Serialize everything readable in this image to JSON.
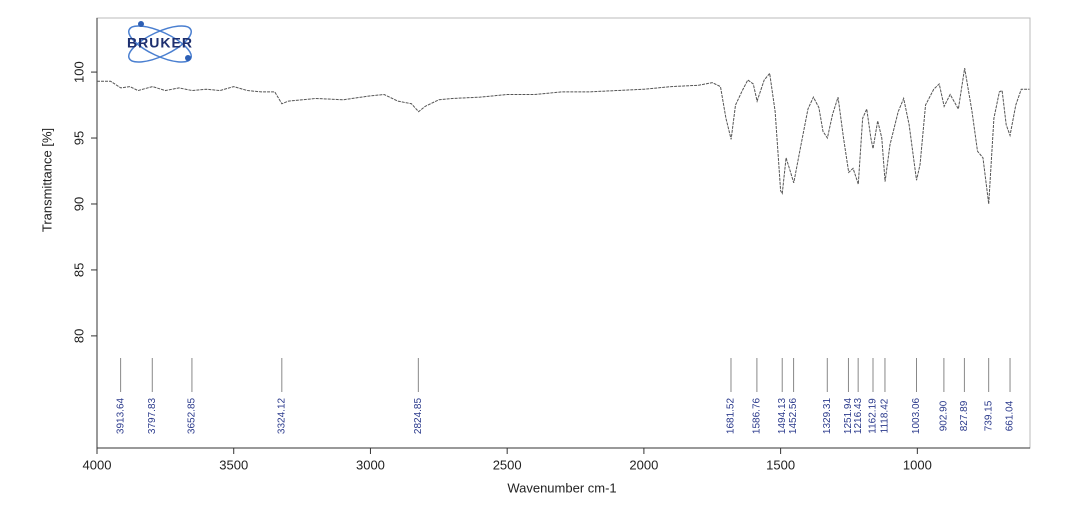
{
  "chart_data": {
    "type": "line",
    "logo": "BRUKER",
    "xlabel": "Wavenumber cm-1",
    "ylabel": "Transmittance [%]",
    "color": "#555555",
    "xlim": [
      4000,
      588
    ],
    "ylim": [
      71.5,
      104.1
    ],
    "xticks": [
      4000,
      3500,
      3000,
      2500,
      2000,
      1500,
      1000
    ],
    "yticks": [
      80,
      85,
      90,
      95,
      100
    ],
    "x": [
      4000,
      3950,
      3913,
      3880,
      3850,
      3797,
      3750,
      3700,
      3652,
      3600,
      3550,
      3500,
      3450,
      3400,
      3350,
      3324,
      3300,
      3200,
      3100,
      3000,
      2950,
      2900,
      2850,
      2824,
      2800,
      2750,
      2700,
      2600,
      2500,
      2400,
      2300,
      2200,
      2100,
      2000,
      1900,
      1800,
      1750,
      1720,
      1700,
      1681,
      1665,
      1640,
      1620,
      1600,
      1586,
      1560,
      1540,
      1520,
      1500,
      1494,
      1480,
      1465,
      1452,
      1430,
      1400,
      1380,
      1360,
      1345,
      1329,
      1310,
      1290,
      1270,
      1251,
      1235,
      1216,
      1200,
      1185,
      1170,
      1162,
      1145,
      1130,
      1118,
      1100,
      1070,
      1050,
      1030,
      1003,
      990,
      970,
      940,
      920,
      902,
      880,
      850,
      827,
      800,
      780,
      760,
      739,
      720,
      700,
      690,
      675,
      661,
      640,
      620,
      600,
      590
    ],
    "values": [
      99.3,
      99.3,
      98.8,
      98.9,
      98.6,
      98.9,
      98.6,
      98.8,
      98.6,
      98.7,
      98.6,
      98.9,
      98.6,
      98.5,
      98.5,
      97.6,
      97.8,
      98.0,
      97.9,
      98.2,
      98.3,
      97.8,
      97.6,
      97.0,
      97.4,
      97.9,
      98.0,
      98.1,
      98.3,
      98.3,
      98.5,
      98.5,
      98.6,
      98.7,
      98.9,
      99.0,
      99.2,
      98.9,
      96.5,
      94.9,
      97.5,
      98.6,
      99.4,
      99.1,
      97.8,
      99.4,
      99.9,
      97.0,
      91.0,
      90.8,
      93.5,
      92.5,
      91.6,
      94.0,
      97.2,
      98.1,
      97.3,
      95.5,
      95.0,
      96.8,
      98.1,
      95.0,
      92.4,
      92.7,
      91.5,
      96.5,
      97.2,
      95.0,
      94.2,
      96.3,
      95.0,
      91.7,
      94.5,
      97.0,
      98.0,
      96.0,
      91.8,
      93.0,
      97.5,
      98.7,
      99.1,
      97.4,
      98.3,
      97.2,
      100.3,
      97.0,
      94.0,
      93.5,
      90.0,
      96.5,
      98.5,
      98.6,
      96.0,
      95.2,
      97.5,
      98.7,
      98.7,
      98.7
    ],
    "peaks": [
      3913.64,
      3797.83,
      3652.85,
      3324.12,
      2824.85,
      1681.52,
      1586.76,
      1494.13,
      1452.56,
      1329.31,
      1251.94,
      1216.43,
      1162.19,
      1118.42,
      1003.06,
      {
        "value": 902.9,
        "label": "902.90"
      },
      827.89,
      739.15,
      661.04
    ]
  }
}
